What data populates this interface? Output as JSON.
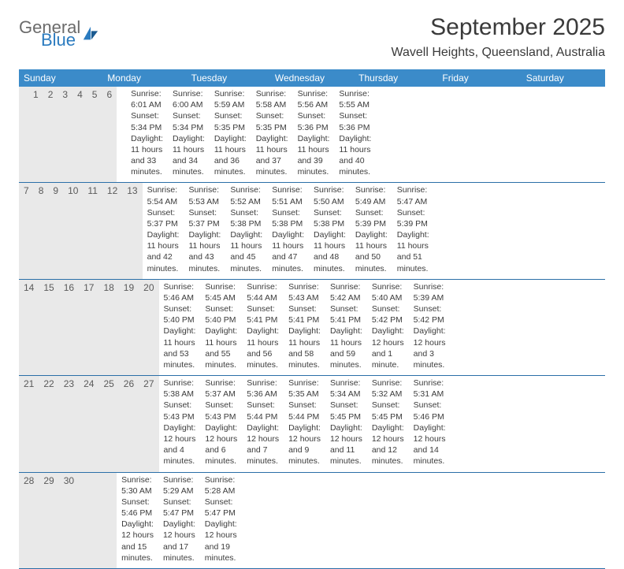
{
  "brand": {
    "general": "General",
    "blue": "Blue"
  },
  "title": "September 2025",
  "location": "Wavell Heights, Queensland, Australia",
  "colors": {
    "header_bg": "#3b8bc9",
    "header_text": "#ffffff",
    "daynum_bg": "#e9e9e9",
    "rule": "#2b6fa8",
    "text": "#3c3c3c"
  },
  "weekdays": [
    "Sunday",
    "Monday",
    "Tuesday",
    "Wednesday",
    "Thursday",
    "Friday",
    "Saturday"
  ],
  "weeks": [
    {
      "days": [
        {
          "n": "",
          "sunrise": "",
          "sunset": "",
          "daylight1": "",
          "daylight2": ""
        },
        {
          "n": "1",
          "sunrise": "Sunrise: 6:01 AM",
          "sunset": "Sunset: 5:34 PM",
          "daylight1": "Daylight: 11 hours",
          "daylight2": "and 33 minutes."
        },
        {
          "n": "2",
          "sunrise": "Sunrise: 6:00 AM",
          "sunset": "Sunset: 5:34 PM",
          "daylight1": "Daylight: 11 hours",
          "daylight2": "and 34 minutes."
        },
        {
          "n": "3",
          "sunrise": "Sunrise: 5:59 AM",
          "sunset": "Sunset: 5:35 PM",
          "daylight1": "Daylight: 11 hours",
          "daylight2": "and 36 minutes."
        },
        {
          "n": "4",
          "sunrise": "Sunrise: 5:58 AM",
          "sunset": "Sunset: 5:35 PM",
          "daylight1": "Daylight: 11 hours",
          "daylight2": "and 37 minutes."
        },
        {
          "n": "5",
          "sunrise": "Sunrise: 5:56 AM",
          "sunset": "Sunset: 5:36 PM",
          "daylight1": "Daylight: 11 hours",
          "daylight2": "and 39 minutes."
        },
        {
          "n": "6",
          "sunrise": "Sunrise: 5:55 AM",
          "sunset": "Sunset: 5:36 PM",
          "daylight1": "Daylight: 11 hours",
          "daylight2": "and 40 minutes."
        }
      ]
    },
    {
      "days": [
        {
          "n": "7",
          "sunrise": "Sunrise: 5:54 AM",
          "sunset": "Sunset: 5:37 PM",
          "daylight1": "Daylight: 11 hours",
          "daylight2": "and 42 minutes."
        },
        {
          "n": "8",
          "sunrise": "Sunrise: 5:53 AM",
          "sunset": "Sunset: 5:37 PM",
          "daylight1": "Daylight: 11 hours",
          "daylight2": "and 43 minutes."
        },
        {
          "n": "9",
          "sunrise": "Sunrise: 5:52 AM",
          "sunset": "Sunset: 5:38 PM",
          "daylight1": "Daylight: 11 hours",
          "daylight2": "and 45 minutes."
        },
        {
          "n": "10",
          "sunrise": "Sunrise: 5:51 AM",
          "sunset": "Sunset: 5:38 PM",
          "daylight1": "Daylight: 11 hours",
          "daylight2": "and 47 minutes."
        },
        {
          "n": "11",
          "sunrise": "Sunrise: 5:50 AM",
          "sunset": "Sunset: 5:38 PM",
          "daylight1": "Daylight: 11 hours",
          "daylight2": "and 48 minutes."
        },
        {
          "n": "12",
          "sunrise": "Sunrise: 5:49 AM",
          "sunset": "Sunset: 5:39 PM",
          "daylight1": "Daylight: 11 hours",
          "daylight2": "and 50 minutes."
        },
        {
          "n": "13",
          "sunrise": "Sunrise: 5:47 AM",
          "sunset": "Sunset: 5:39 PM",
          "daylight1": "Daylight: 11 hours",
          "daylight2": "and 51 minutes."
        }
      ]
    },
    {
      "days": [
        {
          "n": "14",
          "sunrise": "Sunrise: 5:46 AM",
          "sunset": "Sunset: 5:40 PM",
          "daylight1": "Daylight: 11 hours",
          "daylight2": "and 53 minutes."
        },
        {
          "n": "15",
          "sunrise": "Sunrise: 5:45 AM",
          "sunset": "Sunset: 5:40 PM",
          "daylight1": "Daylight: 11 hours",
          "daylight2": "and 55 minutes."
        },
        {
          "n": "16",
          "sunrise": "Sunrise: 5:44 AM",
          "sunset": "Sunset: 5:41 PM",
          "daylight1": "Daylight: 11 hours",
          "daylight2": "and 56 minutes."
        },
        {
          "n": "17",
          "sunrise": "Sunrise: 5:43 AM",
          "sunset": "Sunset: 5:41 PM",
          "daylight1": "Daylight: 11 hours",
          "daylight2": "and 58 minutes."
        },
        {
          "n": "18",
          "sunrise": "Sunrise: 5:42 AM",
          "sunset": "Sunset: 5:41 PM",
          "daylight1": "Daylight: 11 hours",
          "daylight2": "and 59 minutes."
        },
        {
          "n": "19",
          "sunrise": "Sunrise: 5:40 AM",
          "sunset": "Sunset: 5:42 PM",
          "daylight1": "Daylight: 12 hours",
          "daylight2": "and 1 minute."
        },
        {
          "n": "20",
          "sunrise": "Sunrise: 5:39 AM",
          "sunset": "Sunset: 5:42 PM",
          "daylight1": "Daylight: 12 hours",
          "daylight2": "and 3 minutes."
        }
      ]
    },
    {
      "days": [
        {
          "n": "21",
          "sunrise": "Sunrise: 5:38 AM",
          "sunset": "Sunset: 5:43 PM",
          "daylight1": "Daylight: 12 hours",
          "daylight2": "and 4 minutes."
        },
        {
          "n": "22",
          "sunrise": "Sunrise: 5:37 AM",
          "sunset": "Sunset: 5:43 PM",
          "daylight1": "Daylight: 12 hours",
          "daylight2": "and 6 minutes."
        },
        {
          "n": "23",
          "sunrise": "Sunrise: 5:36 AM",
          "sunset": "Sunset: 5:44 PM",
          "daylight1": "Daylight: 12 hours",
          "daylight2": "and 7 minutes."
        },
        {
          "n": "24",
          "sunrise": "Sunrise: 5:35 AM",
          "sunset": "Sunset: 5:44 PM",
          "daylight1": "Daylight: 12 hours",
          "daylight2": "and 9 minutes."
        },
        {
          "n": "25",
          "sunrise": "Sunrise: 5:34 AM",
          "sunset": "Sunset: 5:45 PM",
          "daylight1": "Daylight: 12 hours",
          "daylight2": "and 11 minutes."
        },
        {
          "n": "26",
          "sunrise": "Sunrise: 5:32 AM",
          "sunset": "Sunset: 5:45 PM",
          "daylight1": "Daylight: 12 hours",
          "daylight2": "and 12 minutes."
        },
        {
          "n": "27",
          "sunrise": "Sunrise: 5:31 AM",
          "sunset": "Sunset: 5:46 PM",
          "daylight1": "Daylight: 12 hours",
          "daylight2": "and 14 minutes."
        }
      ]
    },
    {
      "days": [
        {
          "n": "28",
          "sunrise": "Sunrise: 5:30 AM",
          "sunset": "Sunset: 5:46 PM",
          "daylight1": "Daylight: 12 hours",
          "daylight2": "and 15 minutes."
        },
        {
          "n": "29",
          "sunrise": "Sunrise: 5:29 AM",
          "sunset": "Sunset: 5:47 PM",
          "daylight1": "Daylight: 12 hours",
          "daylight2": "and 17 minutes."
        },
        {
          "n": "30",
          "sunrise": "Sunrise: 5:28 AM",
          "sunset": "Sunset: 5:47 PM",
          "daylight1": "Daylight: 12 hours",
          "daylight2": "and 19 minutes."
        },
        {
          "n": "",
          "sunrise": "",
          "sunset": "",
          "daylight1": "",
          "daylight2": ""
        },
        {
          "n": "",
          "sunrise": "",
          "sunset": "",
          "daylight1": "",
          "daylight2": ""
        },
        {
          "n": "",
          "sunrise": "",
          "sunset": "",
          "daylight1": "",
          "daylight2": ""
        },
        {
          "n": "",
          "sunrise": "",
          "sunset": "",
          "daylight1": "",
          "daylight2": ""
        }
      ]
    }
  ]
}
